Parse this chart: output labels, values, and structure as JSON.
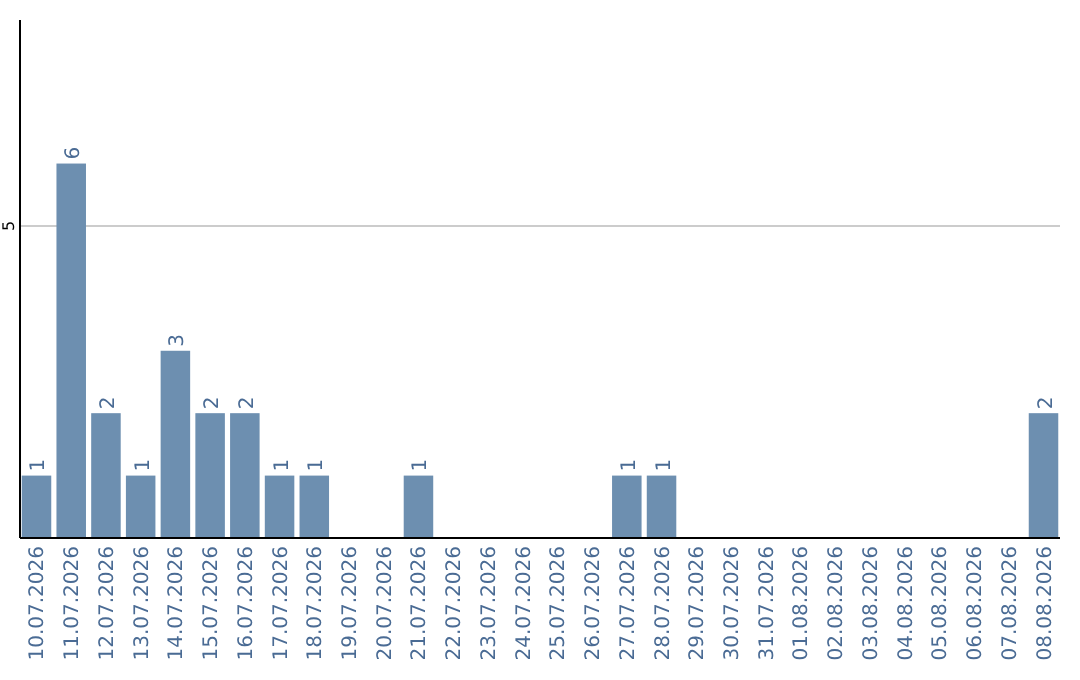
{
  "chart_data": {
    "type": "bar",
    "categories": [
      "10.07.2026",
      "11.07.2026",
      "12.07.2026",
      "13.07.2026",
      "14.07.2026",
      "15.07.2026",
      "16.07.2026",
      "17.07.2026",
      "18.07.2026",
      "19.07.2026",
      "20.07.2026",
      "21.07.2026",
      "22.07.2026",
      "23.07.2026",
      "24.07.2026",
      "25.07.2026",
      "26.07.2026",
      "27.07.2026",
      "28.07.2026",
      "29.07.2026",
      "30.07.2026",
      "31.07.2026",
      "01.08.2026",
      "02.08.2026",
      "03.08.2026",
      "04.08.2026",
      "05.08.2026",
      "06.08.2026",
      "07.08.2026",
      "08.08.2026"
    ],
    "values": [
      1,
      6,
      2,
      1,
      3,
      2,
      2,
      1,
      1,
      0,
      0,
      1,
      0,
      0,
      0,
      0,
      0,
      1,
      1,
      0,
      0,
      0,
      0,
      0,
      0,
      0,
      0,
      0,
      0,
      2
    ],
    "value_labels": [
      "1",
      "6",
      "2",
      "1",
      "3",
      "2",
      "2",
      "1",
      "1",
      null,
      null,
      "1",
      null,
      null,
      null,
      null,
      null,
      "1",
      "1",
      null,
      null,
      null,
      null,
      null,
      null,
      null,
      null,
      null,
      null,
      "2"
    ],
    "color": "#6d8fb0",
    "ylim": [
      0,
      8.3
    ],
    "yticks": [
      5
    ],
    "grid": "y"
  }
}
